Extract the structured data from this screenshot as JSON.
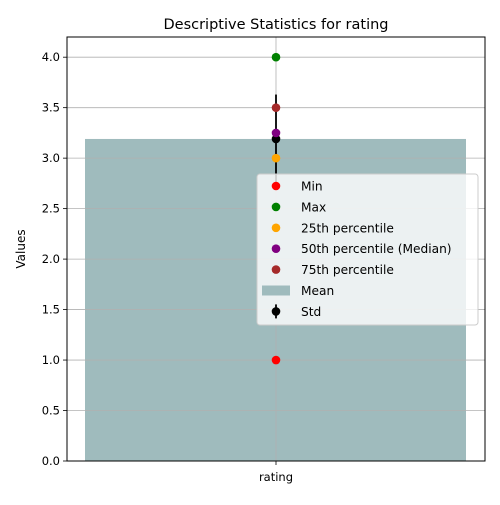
{
  "chart_data": {
    "type": "bar",
    "title": "Descriptive Statistics for rating",
    "xlabel": "",
    "ylabel": "Values",
    "categories": [
      "rating"
    ],
    "ylim": [
      0,
      4.2
    ],
    "yticks": [
      0.0,
      0.5,
      1.0,
      1.5,
      2.0,
      2.5,
      3.0,
      3.5,
      4.0
    ],
    "ytick_labels": [
      "0.0",
      "0.5",
      "1.0",
      "1.5",
      "2.0",
      "2.5",
      "3.0",
      "3.5",
      "4.0"
    ],
    "grid": true,
    "legend_position": "center-right",
    "mean": {
      "label": "Mean",
      "value": 3.19,
      "color": "#9fbbbd"
    },
    "std": {
      "label": "Std",
      "value": 0.44,
      "color": "#000000"
    },
    "markers": [
      {
        "label": "Min",
        "value": 1.0,
        "color": "#ff0000"
      },
      {
        "label": "Max",
        "value": 4.0,
        "color": "#008000"
      },
      {
        "label": "25th percentile",
        "value": 3.0,
        "color": "#ffa500"
      },
      {
        "label": "50th percentile (Median)",
        "value": 3.25,
        "color": "#800080"
      },
      {
        "label": "75th percentile",
        "value": 3.5,
        "color": "#a52a2a"
      }
    ]
  }
}
